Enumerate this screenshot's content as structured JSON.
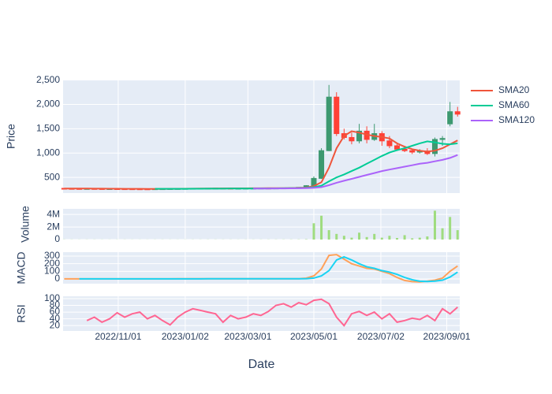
{
  "chart_data": [
    {
      "type": "candlestick",
      "ylabel": "Price",
      "legend": "right",
      "grid": true,
      "increasing_color": "#3D9970",
      "decreasing_color": "#FF4136",
      "x": [
        "2022-09-12",
        "2022-09-19",
        "2022-09-26",
        "2022-10-03",
        "2022-10-10",
        "2022-10-17",
        "2022-10-24",
        "2022-10-31",
        "2022-11-07",
        "2022-11-14",
        "2022-11-21",
        "2022-11-28",
        "2022-12-05",
        "2022-12-12",
        "2022-12-19",
        "2022-12-26",
        "2023-01-02",
        "2023-01-09",
        "2023-01-16",
        "2023-01-23",
        "2023-01-30",
        "2023-02-06",
        "2023-02-13",
        "2023-02-20",
        "2023-02-27",
        "2023-03-06",
        "2023-03-13",
        "2023-03-20",
        "2023-03-27",
        "2023-04-03",
        "2023-04-10",
        "2023-04-17",
        "2023-04-24",
        "2023-05-01",
        "2023-05-08",
        "2023-05-15",
        "2023-05-22",
        "2023-05-29",
        "2023-06-05",
        "2023-06-12",
        "2023-06-19",
        "2023-06-26",
        "2023-07-03",
        "2023-07-10",
        "2023-07-17",
        "2023-07-24",
        "2023-07-31",
        "2023-08-07",
        "2023-08-14",
        "2023-08-21",
        "2023-08-28",
        "2023-09-04",
        "2023-09-11"
      ],
      "open": [
        275,
        272,
        270,
        268,
        270,
        268,
        265,
        267,
        266,
        265,
        264,
        263,
        262,
        265,
        266,
        268,
        270,
        272,
        274,
        275,
        276,
        278,
        276,
        274,
        275,
        277,
        278,
        280,
        279,
        281,
        283,
        286,
        295,
        330,
        480,
        1050,
        2150,
        1400,
        1320,
        1250,
        1450,
        1280,
        1400,
        1250,
        1150,
        1080,
        1050,
        1020,
        1040,
        990,
        1280,
        1600,
        1850
      ],
      "high": [
        280,
        277,
        275,
        274,
        275,
        273,
        271,
        272,
        271,
        270,
        269,
        268,
        270,
        271,
        273,
        275,
        277,
        279,
        280,
        281,
        283,
        283,
        281,
        280,
        282,
        283,
        285,
        285,
        286,
        288,
        291,
        300,
        340,
        520,
        1100,
        2400,
        2250,
        1500,
        1420,
        1600,
        1550,
        1600,
        1450,
        1350,
        1200,
        1150,
        1080,
        1080,
        1100,
        1320,
        1350,
        2050,
        1950
      ],
      "low": [
        267,
        265,
        263,
        263,
        263,
        260,
        260,
        261,
        260,
        259,
        258,
        257,
        257,
        260,
        261,
        263,
        265,
        267,
        269,
        270,
        271,
        271,
        269,
        269,
        270,
        272,
        273,
        274,
        274,
        276,
        278,
        282,
        290,
        320,
        470,
        1040,
        1350,
        1280,
        1180,
        1200,
        1200,
        1250,
        1150,
        1100,
        1050,
        1020,
        980,
        990,
        960,
        930,
        1150,
        1550,
        1750
      ],
      "close": [
        272,
        270,
        268,
        270,
        268,
        265,
        267,
        266,
        265,
        264,
        263,
        262,
        265,
        266,
        268,
        270,
        272,
        274,
        275,
        276,
        278,
        276,
        274,
        275,
        277,
        278,
        280,
        279,
        281,
        283,
        286,
        295,
        330,
        480,
        1050,
        2150,
        1400,
        1320,
        1250,
        1450,
        1280,
        1400,
        1250,
        1150,
        1080,
        1050,
        1020,
        1040,
        990,
        1280,
        1300,
        1850,
        1800
      ],
      "series": [
        {
          "name": "SMA20",
          "color": "#EF553B",
          "values": [
            272,
            271,
            271,
            270,
            269,
            268,
            267,
            267,
            266,
            265,
            265,
            264,
            264,
            264,
            265,
            266,
            267,
            269,
            270,
            272,
            273,
            274,
            275,
            275,
            275,
            276,
            277,
            278,
            279,
            280,
            282,
            285,
            292,
            320,
            400,
            700,
            1100,
            1350,
            1450,
            1420,
            1380,
            1350,
            1330,
            1300,
            1200,
            1130,
            1080,
            1050,
            1030,
            1050,
            1100,
            1180,
            1260
          ]
        },
        {
          "name": "SMA60",
          "color": "#00CC96",
          "values": [
            null,
            null,
            null,
            null,
            null,
            null,
            null,
            null,
            null,
            null,
            null,
            null,
            266,
            266,
            266,
            266,
            266,
            267,
            267,
            268,
            268,
            269,
            270,
            270,
            271,
            272,
            273,
            274,
            275,
            276,
            278,
            280,
            285,
            300,
            330,
            420,
            500,
            560,
            630,
            700,
            780,
            860,
            940,
            1010,
            1060,
            1100,
            1150,
            1200,
            1240,
            1220,
            1190,
            1180,
            1200
          ]
        },
        {
          "name": "SMA120",
          "color": "#AB63FA",
          "values": [
            null,
            null,
            null,
            null,
            null,
            null,
            null,
            null,
            null,
            null,
            null,
            null,
            null,
            null,
            null,
            null,
            null,
            null,
            null,
            null,
            null,
            null,
            null,
            null,
            null,
            270,
            271,
            272,
            273,
            274,
            275,
            277,
            280,
            285,
            300,
            340,
            390,
            430,
            470,
            510,
            550,
            590,
            630,
            660,
            690,
            720,
            750,
            780,
            800,
            830,
            860,
            900,
            960
          ]
        }
      ],
      "ylim": [
        178,
        2510
      ],
      "yticks": [
        500,
        {
          "value": 1000,
          "label": "1,000"
        },
        {
          "value": 1500,
          "label": "1,500"
        },
        {
          "value": 2000,
          "label": "2,000"
        },
        {
          "value": 2500,
          "label": "2,500"
        }
      ]
    },
    {
      "type": "bar",
      "ylabel": "Volume",
      "color": "#9fdc7f",
      "grid": true,
      "values": [
        20000,
        18000,
        15000,
        16000,
        17000,
        15000,
        14000,
        15000,
        16000,
        14000,
        13000,
        12000,
        15000,
        16000,
        14000,
        13000,
        15000,
        17000,
        16000,
        18000,
        19000,
        17000,
        16000,
        15000,
        17000,
        18000,
        19000,
        20000,
        21000,
        22000,
        24000,
        30000,
        50000,
        2600000,
        3800000,
        1500000,
        900000,
        600000,
        300000,
        1100000,
        400000,
        900000,
        300000,
        600000,
        250000,
        700000,
        200000,
        300000,
        500000,
        4600000,
        1800000,
        3600000,
        1500000
      ],
      "ylim": [
        0,
        4900000
      ],
      "yticks": [
        0,
        {
          "value": 2000000,
          "label": "2M"
        },
        {
          "value": 4000000,
          "label": "4M"
        }
      ]
    },
    {
      "type": "line",
      "ylabel": "MACD",
      "grid": true,
      "series": [
        {
          "color": "#FFA15A",
          "values": [
            1,
            1,
            1,
            1,
            1,
            1,
            1,
            1,
            1,
            1,
            1,
            1,
            1,
            1,
            1,
            2,
            2,
            2,
            2,
            2,
            2,
            2,
            2,
            2,
            2,
            2,
            2,
            2,
            2,
            2,
            3,
            3,
            10,
            40,
            130,
            310,
            320,
            260,
            200,
            170,
            140,
            130,
            100,
            70,
            20,
            -20,
            -35,
            -38,
            -30,
            -15,
            10,
            100,
            170
          ]
        },
        {
          "color": "#19D3F3",
          "values": [
            null,
            null,
            1,
            1,
            1,
            1,
            1,
            1,
            1,
            1,
            1,
            1,
            1,
            1,
            1,
            1,
            1,
            1,
            1,
            2,
            2,
            2,
            2,
            2,
            2,
            2,
            2,
            2,
            2,
            2,
            2,
            2,
            4,
            12,
            40,
            110,
            250,
            290,
            250,
            200,
            160,
            140,
            110,
            90,
            60,
            20,
            -10,
            -30,
            -33,
            -28,
            -15,
            25,
            90
          ]
        }
      ],
      "ylim": [
        -62,
        352
      ],
      "yticks": [
        0,
        100,
        200,
        300
      ]
    },
    {
      "type": "line",
      "ylabel": "RSI",
      "xlabel": "Date",
      "grid": true,
      "series": [
        {
          "color": "#FF6692",
          "values": [
            null,
            null,
            null,
            35,
            45,
            30,
            40,
            58,
            45,
            55,
            60,
            40,
            50,
            35,
            22,
            45,
            60,
            70,
            65,
            60,
            55,
            30,
            50,
            40,
            45,
            55,
            50,
            62,
            80,
            85,
            75,
            88,
            82,
            95,
            98,
            85,
            45,
            20,
            55,
            62,
            50,
            60,
            40,
            55,
            30,
            35,
            42,
            38,
            50,
            35,
            70,
            55,
            75
          ]
        }
      ],
      "ylim": [
        4,
        107
      ],
      "yticks": [
        20,
        40,
        60,
        80,
        100
      ],
      "xlim": [
        "2022-09-11",
        "2023-09-13"
      ],
      "xticks": [
        {
          "value": "2022-11-01",
          "label": "2022/11/01"
        },
        {
          "value": "2023-01-02",
          "label": "2023/01/02"
        },
        {
          "value": "2023-03-01",
          "label": "2023/03/01"
        },
        {
          "value": "2023-05-01",
          "label": "2023/05/01"
        },
        {
          "value": "2023-07-02",
          "label": "2023/07/02"
        },
        {
          "value": "2023-09-01",
          "label": "2023/09/01"
        }
      ]
    }
  ]
}
